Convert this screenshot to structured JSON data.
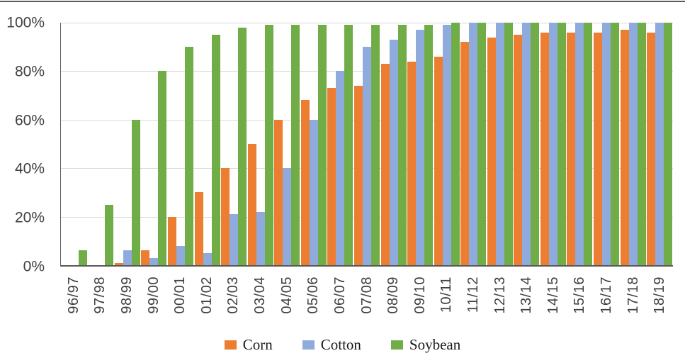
{
  "chart_data": {
    "type": "bar",
    "title": "",
    "xlabel": "",
    "ylabel": "",
    "categories": [
      "96/97",
      "97/98",
      "98/99",
      "99/00",
      "00/01",
      "01/02",
      "02/03",
      "03/04",
      "04/05",
      "05/06",
      "06/07",
      "07/08",
      "08/09",
      "09/10",
      "10/11",
      "11/12",
      "12/13",
      "13/14",
      "14/15",
      "15/16",
      "16/17",
      "17/18",
      "18/19"
    ],
    "series": [
      {
        "name": "Corn",
        "color": "#ED7D31",
        "values": [
          0,
          0,
          1,
          6,
          20,
          30,
          40,
          50,
          60,
          68,
          73,
          74,
          83,
          84,
          86,
          92,
          94,
          95,
          96,
          96,
          96,
          97,
          96
        ]
      },
      {
        "name": "Cotton",
        "color": "#8FAADC",
        "values": [
          0,
          0,
          6,
          3,
          8,
          5,
          21,
          22,
          40,
          60,
          80,
          90,
          93,
          97,
          99,
          100,
          100,
          100,
          100,
          100,
          100,
          100,
          100
        ]
      },
      {
        "name": "Soybean",
        "color": "#70AD47",
        "values": [
          6,
          25,
          60,
          80,
          90,
          95,
          98,
          99,
          99,
          99,
          99,
          99,
          99,
          99,
          100,
          100,
          100,
          100,
          100,
          100,
          100,
          100,
          100
        ]
      }
    ],
    "ylim": [
      0,
      100
    ],
    "ytick_values": [
      0,
      20,
      40,
      60,
      80,
      100
    ],
    "yticks": [
      "0%",
      "20%",
      "40%",
      "60%",
      "80%",
      "100%"
    ],
    "grid": true,
    "legend_position": "bottom",
    "legend": [
      "Corn",
      "Cotton",
      "Soybean"
    ]
  },
  "colors": {
    "corn": "#ED7D31",
    "cotton": "#8FAADC",
    "soybean": "#70AD47",
    "gridline": "#D9D9D9",
    "axis": "#595959",
    "tick_text": "#404040"
  }
}
